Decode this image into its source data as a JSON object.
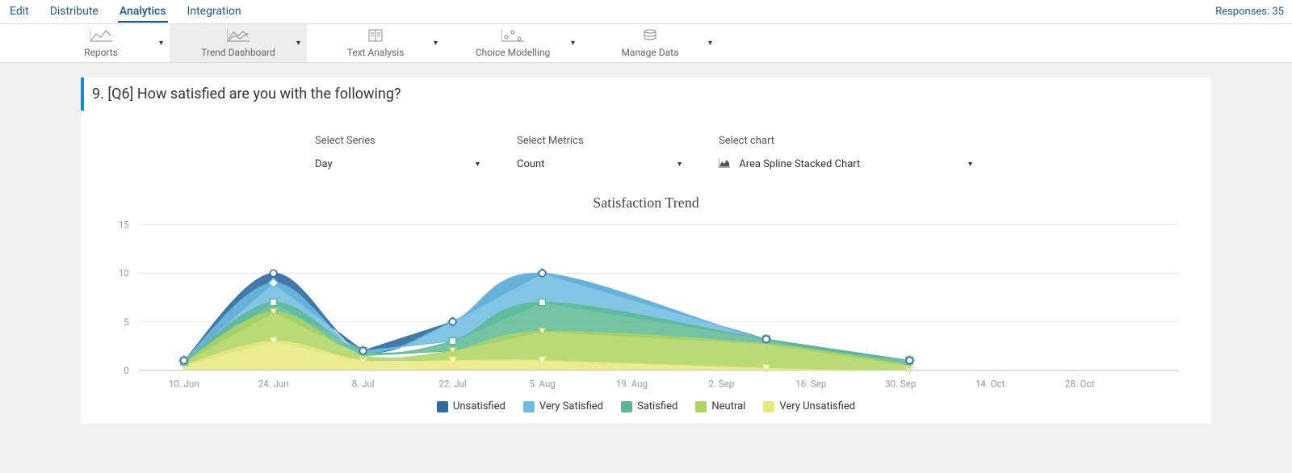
{
  "topnav": {
    "items": [
      "Edit",
      "Distribute",
      "Analytics",
      "Integration"
    ],
    "active_index": 2,
    "responses_label": "Responses: 35"
  },
  "toolbar": {
    "items": [
      {
        "label": "Reports"
      },
      {
        "label": "Trend Dashboard"
      },
      {
        "label": "Text Analysis"
      },
      {
        "label": "Choice Modelling"
      },
      {
        "label": "Manage Data"
      }
    ],
    "active_index": 1
  },
  "question": {
    "text": "9. [Q6] How satisfied are you with the following?"
  },
  "controls": {
    "series": {
      "label": "Select Series",
      "value": "Day"
    },
    "metrics": {
      "label": "Select Metrics",
      "value": "Count"
    },
    "chart": {
      "label": "Select chart",
      "value": "Area Spline Stacked Chart"
    }
  },
  "chart": {
    "title": "Satisfaction Trend",
    "type": "area-spline-stacked",
    "background_color": "#ffffff",
    "grid_color": "#e8e8e8",
    "axis_color": "#cccccc",
    "label_color": "#999999",
    "ylim": [
      0,
      15
    ],
    "yticks": [
      0,
      5,
      10,
      15
    ],
    "x_labels": [
      "10. Jun",
      "24. Jun",
      "8. Jul",
      "22. Jul",
      "5. Aug",
      "19. Aug",
      "2. Sep",
      "16. Sep",
      "30. Sep",
      "14. Oct",
      "28. Oct"
    ],
    "x_data_points": [
      0,
      1,
      2,
      3,
      4,
      6.5,
      8.1
    ],
    "series": [
      {
        "name": "Very Unsatisfied",
        "color": "#e8e87e",
        "opacity": 0.85,
        "marker": "triangle-down",
        "values": [
          0.5,
          3.0,
          1.0,
          1.0,
          1.0,
          0.2,
          0.0
        ]
      },
      {
        "name": "Neutral",
        "color": "#aed35f",
        "opacity": 0.85,
        "marker": "triangle-down",
        "values": [
          0.3,
          3.0,
          0.5,
          1.0,
          3.0,
          2.5,
          0.5
        ]
      },
      {
        "name": "Satisfied",
        "color": "#5cb893",
        "opacity": 0.85,
        "marker": "square",
        "values": [
          0.1,
          1.0,
          0.5,
          1.0,
          3.0,
          0.5,
          0.5
        ]
      },
      {
        "name": "Very Satisfied",
        "color": "#6cbbe0",
        "opacity": 0.85,
        "marker": "diamond",
        "values": [
          0.1,
          2.0,
          0.0,
          2.0,
          3.0,
          0.0,
          0.0
        ]
      },
      {
        "name": "Unsatisfied",
        "color": "#2d6ca2",
        "opacity": 0.9,
        "marker": "circle",
        "values": [
          0.0,
          1.0,
          0.0,
          0.0,
          0.0,
          0.0,
          0.0
        ]
      }
    ],
    "legend_order": [
      "Unsatisfied",
      "Very Satisfied",
      "Satisfied",
      "Neutral",
      "Very Unsatisfied"
    ],
    "title_fontsize": 18,
    "label_fontsize": 11
  }
}
